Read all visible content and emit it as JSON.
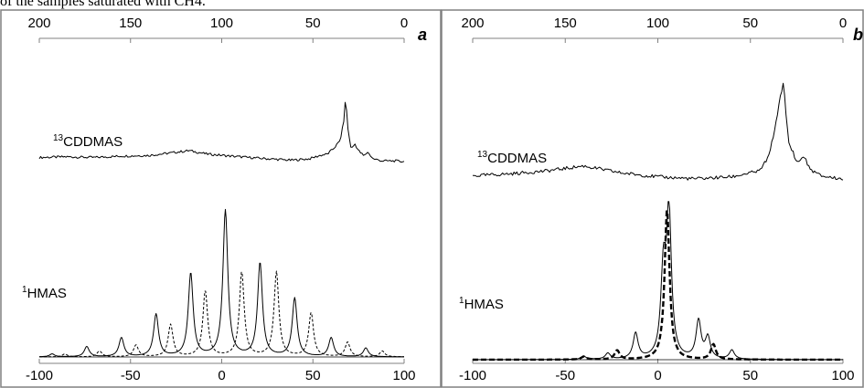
{
  "caption": "of the samples saturated with CH4.",
  "chart_data": [
    {
      "type": "line",
      "panel_label": "a",
      "top_axis": {
        "ticks": [
          200,
          150,
          100,
          50,
          0
        ],
        "range": [
          200,
          0
        ]
      },
      "bottom_axis": {
        "ticks": [
          -100,
          -50,
          0,
          50,
          100
        ],
        "range": [
          -100,
          100
        ]
      },
      "upper_trace_label": {
        "sup": "13",
        "main": "CDDMAS"
      },
      "lower_trace_label": {
        "sup": "1",
        "main": "HMAS"
      },
      "series": [
        {
          "style": "solid",
          "trace": "13C DD MAS (top axis)",
          "x": [
            200,
            185,
            170,
            155,
            140,
            130,
            118,
            108,
            95,
            80,
            62,
            52,
            46,
            42,
            38,
            35,
            33,
            32,
            31,
            29,
            27,
            25,
            22,
            20,
            17,
            12,
            5,
            0
          ],
          "y": [
            0.1,
            0.11,
            0.1,
            0.12,
            0.13,
            0.16,
            0.2,
            0.15,
            0.12,
            0.09,
            0.06,
            0.08,
            0.13,
            0.15,
            0.25,
            0.35,
            0.65,
            1.0,
            0.55,
            0.22,
            0.3,
            0.2,
            0.12,
            0.18,
            0.08,
            0.05,
            0.05,
            0.04
          ]
        },
        {
          "style": "solid",
          "trace": "1H MAS, solid (bottom axis)",
          "peaks_x": [
            -93,
            -74,
            -55,
            -36,
            -17,
            2,
            21,
            40,
            60,
            79
          ],
          "peaks_y": [
            0.02,
            0.07,
            0.13,
            0.29,
            0.57,
            1.0,
            0.64,
            0.4,
            0.13,
            0.06
          ]
        },
        {
          "style": "dashed",
          "trace": "1H MAS, dashed (bottom axis)",
          "peaks_x": [
            -86,
            -67,
            -47,
            -28,
            -9,
            11,
            30,
            49,
            69,
            88
          ],
          "peaks_y": [
            0.02,
            0.04,
            0.08,
            0.22,
            0.45,
            0.58,
            0.58,
            0.3,
            0.1,
            0.04
          ]
        }
      ]
    },
    {
      "type": "line",
      "panel_label": "b",
      "top_axis": {
        "ticks": [
          200,
          150,
          100,
          50,
          0
        ],
        "range": [
          200,
          0
        ]
      },
      "bottom_axis": {
        "ticks": [
          -100,
          -50,
          0,
          50,
          100
        ],
        "range": [
          -100,
          100
        ]
      },
      "upper_trace_label": {
        "sup": "13",
        "main": "CDDMAS"
      },
      "lower_trace_label": {
        "sup": "1",
        "main": "HMAS"
      },
      "series": [
        {
          "style": "solid",
          "trace": "13C DD MAS (top axis)",
          "x": [
            200,
            180,
            160,
            140,
            120,
            100,
            80,
            60,
            45,
            40,
            36,
            34,
            32,
            31,
            29,
            27,
            25,
            21,
            18,
            12,
            5,
            0
          ],
          "y": [
            0.05,
            0.07,
            0.1,
            0.15,
            0.08,
            0.04,
            0.02,
            0.04,
            0.1,
            0.25,
            0.6,
            0.85,
            1.0,
            0.7,
            0.35,
            0.3,
            0.18,
            0.25,
            0.12,
            0.05,
            0.03,
            0.02
          ]
        },
        {
          "style": "solid",
          "trace": "1H MAS, solid (bottom axis)",
          "peaks_x": [
            -40,
            -27,
            -12,
            3,
            6,
            22,
            27,
            40
          ],
          "peaks_y": [
            0.02,
            0.04,
            0.17,
            0.55,
            0.95,
            0.25,
            0.14,
            0.06
          ]
        },
        {
          "style": "dashed",
          "trace": "1H MAS, dashed (bottom axis)",
          "peaks_x": [
            -40,
            -22,
            5,
            30
          ],
          "peaks_y": [
            0.02,
            0.06,
            1.0,
            0.1
          ]
        }
      ]
    }
  ]
}
